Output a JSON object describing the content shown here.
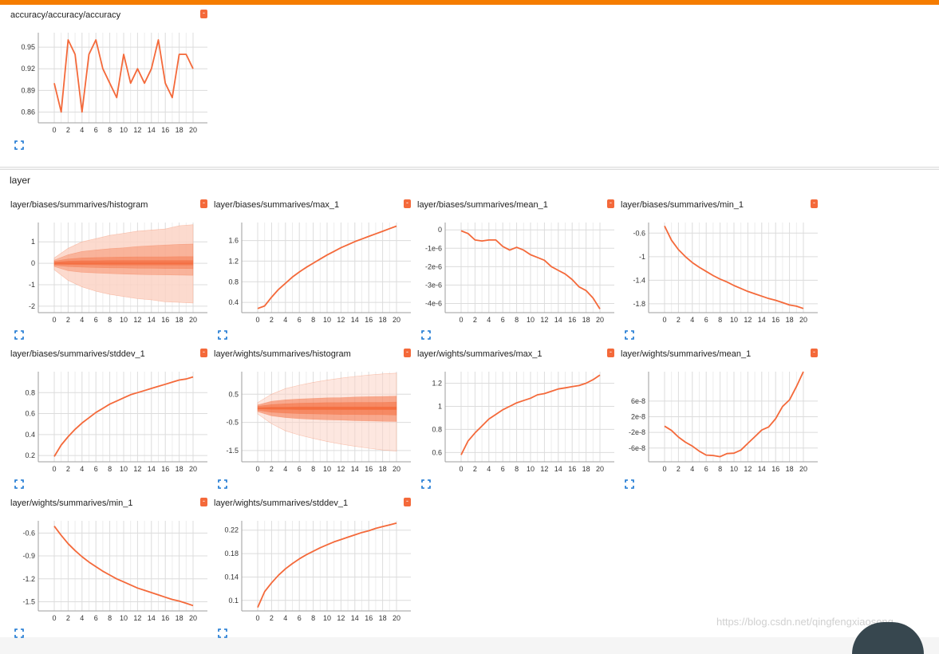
{
  "sections": {
    "accuracy": {
      "title": ""
    },
    "layer": {
      "title": "layer"
    }
  },
  "menu_glyph": "-",
  "watermark": "https://blog.csdn.net/qingfengxiaosong",
  "colors": {
    "accent": "#f4693a",
    "top_bar": "#f57c00",
    "band_dark": "#f4693a",
    "band_light": "#fbd3c6"
  },
  "chart_data": [
    {
      "id": "accuracy",
      "title": "accuracy/accuracy/accuracy",
      "type": "line",
      "x": [
        0,
        1,
        2,
        3,
        4,
        5,
        6,
        7,
        8,
        9,
        10,
        11,
        12,
        13,
        14,
        15,
        16,
        17,
        18,
        19,
        20
      ],
      "y": [
        0.9,
        0.86,
        0.96,
        0.94,
        0.86,
        0.94,
        0.96,
        0.92,
        0.9,
        0.88,
        0.94,
        0.9,
        0.92,
        0.9,
        0.92,
        0.96,
        0.9,
        0.88,
        0.94,
        0.94,
        0.92
      ],
      "xlim": [
        0,
        20
      ],
      "ylim": [
        0.845,
        0.97
      ],
      "xticks": [
        "0",
        "2",
        "4",
        "6",
        "8",
        "10",
        "12",
        "14",
        "16",
        "18",
        "20"
      ],
      "yticks": [
        {
          "v": 0.86,
          "label": "0.86"
        },
        {
          "v": 0.89,
          "label": "0.89"
        },
        {
          "v": 0.92,
          "label": "0.92"
        },
        {
          "v": 0.95,
          "label": "0.95"
        }
      ],
      "grid": true
    },
    {
      "id": "biases-histogram",
      "title": "layer/biases/summarives/histogram",
      "type": "area",
      "x": [
        0,
        2,
        4,
        6,
        8,
        10,
        12,
        14,
        16,
        18,
        20
      ],
      "bands": [
        {
          "upper": [
            0.25,
            0.7,
            1.0,
            1.15,
            1.3,
            1.4,
            1.5,
            1.55,
            1.6,
            1.75,
            1.8
          ],
          "lower": [
            -0.3,
            -0.8,
            -1.1,
            -1.3,
            -1.45,
            -1.55,
            -1.65,
            -1.7,
            -1.8,
            -1.82,
            -1.85
          ]
        },
        {
          "upper": [
            0.15,
            0.4,
            0.55,
            0.62,
            0.68,
            0.72,
            0.78,
            0.82,
            0.85,
            0.88,
            0.9
          ],
          "lower": [
            -0.15,
            -0.35,
            -0.42,
            -0.45,
            -0.48,
            -0.5,
            -0.52,
            -0.53,
            -0.54,
            -0.55,
            -0.56
          ]
        },
        {
          "upper": [
            0.1,
            0.2,
            0.25,
            0.27,
            0.28,
            0.29,
            0.3,
            0.3,
            0.3,
            0.31,
            0.31
          ],
          "lower": [
            -0.1,
            -0.15,
            -0.18,
            -0.2,
            -0.21,
            -0.22,
            -0.23,
            -0.23,
            -0.24,
            -0.24,
            -0.25
          ]
        },
        {
          "upper": [
            0.05,
            0.1,
            0.12,
            0.12,
            0.13,
            0.13,
            0.13,
            0.13,
            0.13,
            0.13,
            0.13
          ],
          "lower": [
            -0.05,
            -0.06,
            -0.07,
            -0.07,
            -0.08,
            -0.08,
            -0.08,
            -0.08,
            -0.08,
            -0.08,
            -0.08
          ]
        }
      ],
      "xlim": [
        0,
        20
      ],
      "ylim": [
        -2.3,
        1.9
      ],
      "xticks": [
        "0",
        "2",
        "4",
        "6",
        "8",
        "10",
        "12",
        "14",
        "16",
        "18",
        "20"
      ],
      "yticks": [
        {
          "v": -2,
          "label": "-2"
        },
        {
          "v": -1,
          "label": "-1"
        },
        {
          "v": 0,
          "label": "0"
        },
        {
          "v": 1,
          "label": "1"
        }
      ],
      "grid": true
    },
    {
      "id": "biases-max",
      "title": "layer/biases/summarives/max_1",
      "type": "line",
      "x": [
        0,
        1,
        2,
        3,
        4,
        5,
        6,
        7,
        8,
        9,
        10,
        11,
        12,
        13,
        14,
        15,
        16,
        17,
        18,
        19,
        20
      ],
      "y": [
        0.28,
        0.33,
        0.5,
        0.65,
        0.77,
        0.89,
        0.99,
        1.08,
        1.16,
        1.24,
        1.32,
        1.39,
        1.46,
        1.52,
        1.58,
        1.63,
        1.68,
        1.73,
        1.78,
        1.83,
        1.88
      ],
      "xlim": [
        0,
        20
      ],
      "ylim": [
        0.2,
        1.95
      ],
      "xticks": [
        "0",
        "2",
        "4",
        "6",
        "8",
        "10",
        "12",
        "14",
        "16",
        "18",
        "20"
      ],
      "yticks": [
        {
          "v": 0.4,
          "label": "0.4"
        },
        {
          "v": 0.8,
          "label": "0.8"
        },
        {
          "v": 1.2,
          "label": "1.2"
        },
        {
          "v": 1.6,
          "label": "1.6"
        }
      ],
      "grid": true
    },
    {
      "id": "biases-mean",
      "title": "layer/biases/summarives/mean_1",
      "type": "line",
      "x": [
        0,
        1,
        2,
        3,
        4,
        5,
        6,
        7,
        8,
        9,
        10,
        11,
        12,
        13,
        14,
        15,
        16,
        17,
        18,
        19,
        20
      ],
      "y": [
        -5e-08,
        -2e-07,
        -5.5e-07,
        -6e-07,
        -5.5e-07,
        -5.5e-07,
        -9e-07,
        -1.1e-06,
        -9.5e-07,
        -1.1e-06,
        -1.35e-06,
        -1.5e-06,
        -1.65e-06,
        -2e-06,
        -2.2e-06,
        -2.4e-06,
        -2.7e-06,
        -3.1e-06,
        -3.3e-06,
        -3.7e-06,
        -4.3e-06
      ],
      "xlim": [
        0,
        20
      ],
      "ylim": [
        -4.5e-06,
        4e-07
      ],
      "xticks": [
        "0",
        "2",
        "4",
        "6",
        "8",
        "10",
        "12",
        "14",
        "16",
        "18",
        "20"
      ],
      "yticks": [
        {
          "v": 0,
          "label": "0"
        },
        {
          "v": -1e-06,
          "label": "-1e-6"
        },
        {
          "v": -2e-06,
          "label": "-2e-6"
        },
        {
          "v": -3e-06,
          "label": "-3e-6"
        },
        {
          "v": -4e-06,
          "label": "-4e-6"
        }
      ],
      "grid": true
    },
    {
      "id": "biases-min",
      "title": "layer/biases/summarives/min_1",
      "type": "line",
      "x": [
        0,
        1,
        2,
        3,
        4,
        5,
        6,
        7,
        8,
        9,
        10,
        11,
        12,
        13,
        14,
        15,
        16,
        17,
        18,
        19,
        20
      ],
      "y": [
        -0.48,
        -0.72,
        -0.88,
        -1.0,
        -1.1,
        -1.18,
        -1.25,
        -1.32,
        -1.38,
        -1.43,
        -1.49,
        -1.54,
        -1.59,
        -1.63,
        -1.67,
        -1.71,
        -1.74,
        -1.78,
        -1.82,
        -1.84,
        -1.88
      ],
      "xlim": [
        0,
        20
      ],
      "ylim": [
        -1.95,
        -0.42
      ],
      "xticks": [
        "0",
        "2",
        "4",
        "6",
        "8",
        "10",
        "12",
        "14",
        "16",
        "18",
        "20"
      ],
      "yticks": [
        {
          "v": -0.6,
          "label": "-0.6"
        },
        {
          "v": -1.0,
          "label": "-1"
        },
        {
          "v": -1.4,
          "label": "-1.4"
        },
        {
          "v": -1.8,
          "label": "-1.8"
        }
      ],
      "grid": true
    },
    {
      "id": "biases-stddev",
      "title": "layer/biases/summarives/stddev_1",
      "type": "line",
      "x": [
        0,
        1,
        2,
        3,
        4,
        5,
        6,
        7,
        8,
        9,
        10,
        11,
        12,
        13,
        14,
        15,
        16,
        17,
        18,
        19,
        20
      ],
      "y": [
        0.19,
        0.3,
        0.38,
        0.45,
        0.51,
        0.56,
        0.61,
        0.65,
        0.69,
        0.72,
        0.75,
        0.78,
        0.8,
        0.82,
        0.84,
        0.86,
        0.88,
        0.9,
        0.92,
        0.93,
        0.95
      ],
      "xlim": [
        0,
        20
      ],
      "ylim": [
        0.14,
        1.0
      ],
      "xticks": [
        "0",
        "2",
        "4",
        "6",
        "8",
        "10",
        "12",
        "14",
        "16",
        "18",
        "20"
      ],
      "yticks": [
        {
          "v": 0.2,
          "label": "0.2"
        },
        {
          "v": 0.4,
          "label": "0.4"
        },
        {
          "v": 0.6,
          "label": "0.6"
        },
        {
          "v": 0.8,
          "label": "0.8"
        }
      ],
      "grid": true
    },
    {
      "id": "weights-histogram",
      "title": "layer/wights/summarives/histogram",
      "type": "area",
      "x": [
        0,
        2,
        4,
        6,
        8,
        10,
        12,
        14,
        16,
        18,
        20
      ],
      "bands": [
        {
          "upper": [
            0.2,
            0.5,
            0.7,
            0.82,
            0.92,
            1.0,
            1.07,
            1.13,
            1.18,
            1.22,
            1.25
          ],
          "lower": [
            -0.2,
            -0.55,
            -0.8,
            -0.95,
            -1.07,
            -1.18,
            -1.27,
            -1.35,
            -1.42,
            -1.48,
            -1.52
          ]
        },
        {
          "upper": [
            0.12,
            0.25,
            0.3,
            0.33,
            0.35,
            0.37,
            0.38,
            0.4,
            0.41,
            0.42,
            0.43
          ],
          "lower": [
            -0.12,
            -0.27,
            -0.33,
            -0.37,
            -0.39,
            -0.41,
            -0.42,
            -0.44,
            -0.45,
            -0.46,
            -0.47
          ]
        },
        {
          "upper": [
            0.07,
            0.13,
            0.16,
            0.18,
            0.19,
            0.2,
            0.2,
            0.21,
            0.21,
            0.21,
            0.22
          ],
          "lower": [
            -0.07,
            -0.14,
            -0.17,
            -0.19,
            -0.2,
            -0.21,
            -0.22,
            -0.22,
            -0.23,
            -0.23,
            -0.24
          ]
        },
        {
          "upper": [
            0.02,
            0.04,
            0.04,
            0.05,
            0.05,
            0.05,
            0.05,
            0.05,
            0.05,
            0.05,
            0.05
          ],
          "lower": [
            -0.02,
            -0.04,
            -0.04,
            -0.05,
            -0.05,
            -0.05,
            -0.05,
            -0.05,
            -0.05,
            -0.05,
            -0.05
          ]
        }
      ],
      "xlim": [
        0,
        20
      ],
      "ylim": [
        -1.9,
        1.3
      ],
      "xticks": [
        "0",
        "2",
        "4",
        "6",
        "8",
        "10",
        "12",
        "14",
        "16",
        "18",
        "20"
      ],
      "yticks": [
        {
          "v": -1.5,
          "label": "-1.5"
        },
        {
          "v": -0.5,
          "label": "-0.5"
        },
        {
          "v": 0.5,
          "label": "0.5"
        }
      ],
      "grid": true
    },
    {
      "id": "weights-max",
      "title": "layer/wights/summarives/max_1",
      "type": "line",
      "x": [
        0,
        1,
        2,
        3,
        4,
        5,
        6,
        7,
        8,
        9,
        10,
        11,
        12,
        13,
        14,
        15,
        16,
        17,
        18,
        19,
        20
      ],
      "y": [
        0.58,
        0.7,
        0.77,
        0.83,
        0.89,
        0.93,
        0.97,
        1.0,
        1.03,
        1.05,
        1.07,
        1.1,
        1.11,
        1.13,
        1.15,
        1.16,
        1.17,
        1.18,
        1.2,
        1.23,
        1.27
      ],
      "xlim": [
        0,
        20
      ],
      "ylim": [
        0.52,
        1.3
      ],
      "xticks": [
        "0",
        "2",
        "4",
        "6",
        "8",
        "10",
        "12",
        "14",
        "16",
        "18",
        "20"
      ],
      "yticks": [
        {
          "v": 0.6,
          "label": "0.6"
        },
        {
          "v": 0.8,
          "label": "0.8"
        },
        {
          "v": 1.0,
          "label": "1"
        },
        {
          "v": 1.2,
          "label": "1.2"
        }
      ],
      "grid": true
    },
    {
      "id": "weights-mean",
      "title": "layer/wights/summarives/mean_1",
      "type": "line",
      "x": [
        0,
        1,
        2,
        3,
        4,
        5,
        6,
        7,
        8,
        9,
        10,
        11,
        12,
        13,
        14,
        15,
        16,
        17,
        18,
        19,
        20
      ],
      "y": [
        -4e-09,
        -1.5e-08,
        -3.2e-08,
        -4.5e-08,
        -5.5e-08,
        -6.8e-08,
        -7.8e-08,
        -7.9e-08,
        -8.2e-08,
        -7.4e-08,
        -7.3e-08,
        -6.5e-08,
        -4.8e-08,
        -3.1e-08,
        -1.4e-08,
        -6e-09,
        1.5e-08,
        4.6e-08,
        6.3e-08,
        9.7e-08,
        1.35e-07
      ],
      "xlim": [
        0,
        20
      ],
      "ylim": [
        -9.5e-08,
        1.35e-07
      ],
      "xticks": [
        "0",
        "2",
        "4",
        "6",
        "8",
        "10",
        "12",
        "14",
        "16",
        "18",
        "20"
      ],
      "yticks": [
        {
          "v": -6e-08,
          "label": "-6e-8"
        },
        {
          "v": -2e-08,
          "label": "-2e-8"
        },
        {
          "v": 2e-08,
          "label": "2e-8"
        },
        {
          "v": 6e-08,
          "label": "6e-8"
        }
      ],
      "grid": true
    },
    {
      "id": "weights-min",
      "title": "layer/wights/summarives/min_1",
      "type": "line",
      "x": [
        0,
        1,
        2,
        3,
        4,
        5,
        6,
        7,
        8,
        9,
        10,
        11,
        12,
        13,
        14,
        15,
        16,
        17,
        18,
        19,
        20
      ],
      "y": [
        -0.51,
        -0.63,
        -0.74,
        -0.83,
        -0.91,
        -0.98,
        -1.04,
        -1.1,
        -1.15,
        -1.2,
        -1.24,
        -1.28,
        -1.32,
        -1.35,
        -1.38,
        -1.41,
        -1.44,
        -1.47,
        -1.49,
        -1.52,
        -1.55
      ],
      "xlim": [
        0,
        20
      ],
      "ylim": [
        -1.62,
        -0.44
      ],
      "xticks": [
        "0",
        "2",
        "4",
        "6",
        "8",
        "10",
        "12",
        "14",
        "16",
        "18",
        "20"
      ],
      "yticks": [
        {
          "v": -0.6,
          "label": "-0.6"
        },
        {
          "v": -0.9,
          "label": "-0.9"
        },
        {
          "v": -1.2,
          "label": "-1.2"
        },
        {
          "v": -1.5,
          "label": "-1.5"
        }
      ],
      "grid": true
    },
    {
      "id": "weights-stddev",
      "title": "layer/wights/summarives/stddev_1",
      "type": "line",
      "x": [
        0,
        1,
        2,
        3,
        4,
        5,
        6,
        7,
        8,
        9,
        10,
        11,
        12,
        13,
        14,
        15,
        16,
        17,
        18,
        19,
        20
      ],
      "y": [
        0.088,
        0.115,
        0.13,
        0.143,
        0.154,
        0.163,
        0.171,
        0.178,
        0.184,
        0.19,
        0.195,
        0.2,
        0.204,
        0.208,
        0.212,
        0.216,
        0.219,
        0.223,
        0.226,
        0.229,
        0.232
      ],
      "xlim": [
        0,
        20
      ],
      "ylim": [
        0.082,
        0.236
      ],
      "xticks": [
        "0",
        "2",
        "4",
        "6",
        "8",
        "10",
        "12",
        "14",
        "16",
        "18",
        "20"
      ],
      "yticks": [
        {
          "v": 0.1,
          "label": "0.1"
        },
        {
          "v": 0.14,
          "label": "0.14"
        },
        {
          "v": 0.18,
          "label": "0.18"
        },
        {
          "v": 0.22,
          "label": "0.22"
        }
      ],
      "grid": true
    }
  ]
}
